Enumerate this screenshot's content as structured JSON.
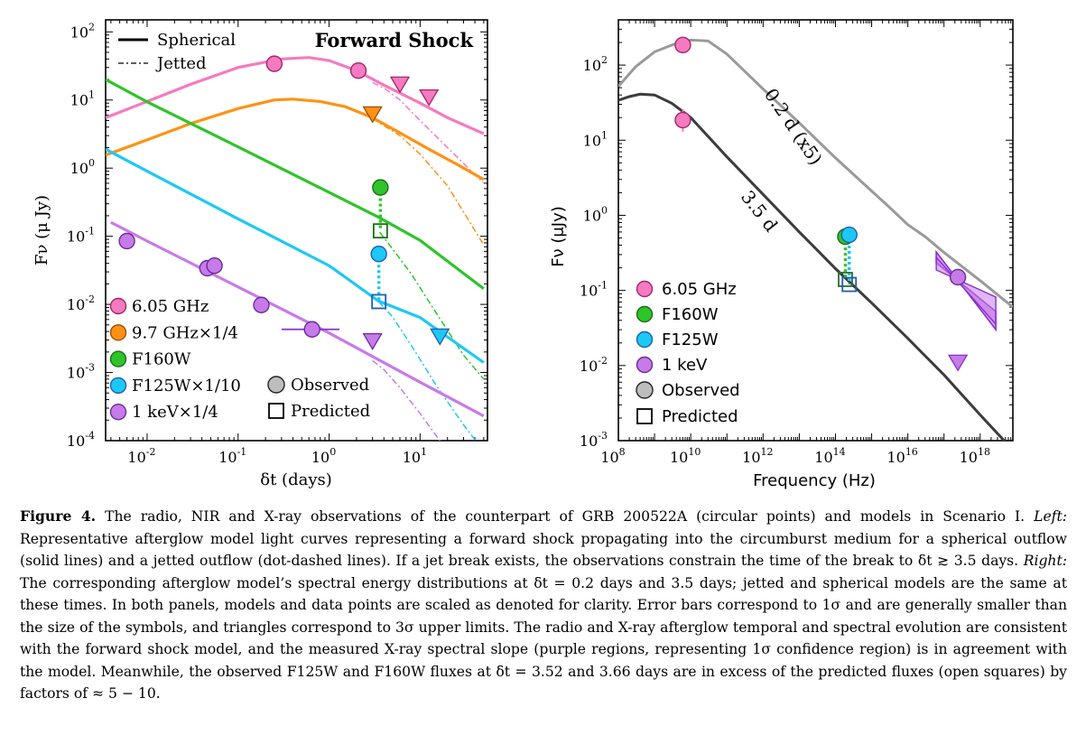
{
  "figure": {
    "caption_label": "Figure 4.",
    "caption_text_1": " The radio, NIR and X-ray observations of the counterpart of GRB 200522A (circular points) and models in Scenario I. ",
    "caption_left": "Left:",
    "caption_text_2": " Representative afterglow model light curves representing a forward shock propagating into the circumburst medium for a spherical outflow (solid lines) and a jetted outflow (dot-dashed lines). If a jet break exists, the observations constrain the time of the break to δt ≳ 3.5 days. ",
    "caption_right": "Right:",
    "caption_text_3": " The corresponding afterglow model’s spectral energy distributions at δt = 0.2 days and 3.5 days; jetted and spherical models are the same at these times. In both panels, models and data points are scaled as denoted for clarity. Error bars correspond to 1σ and are generally smaller than the size of the symbols, and triangles correspond to 3σ upper limits. The radio and X-ray afterglow temporal and spectral evolution are consistent with the forward shock model, and the measured X-ray spectral slope (purple regions, representing 1σ confidence region) is in agreement with the model. Meanwhile, the observed F125W and F160W fluxes at δt = 3.52 and 3.66 days are in excess of the predicted fluxes (open squares) by factors of ≈ 5 − 10."
  },
  "colors": {
    "radio605": "#f57ac0",
    "radio97": "#ff9214",
    "f160w": "#2fc42a",
    "f125w": "#1ec8f5",
    "xray": "#c77be8",
    "xray_edge": "#8a2fd0",
    "sed02": "#9a9a9a",
    "sed35": "#3c3c3c"
  },
  "chart_data": [
    {
      "type": "line",
      "title": "Forward Shock",
      "xlabel": "δt (days)",
      "ylabel": "Fν (μ Jy)",
      "xscale": "log",
      "yscale": "log",
      "xlim": [
        0.0035,
        55
      ],
      "ylim": [
        0.0001,
        150
      ],
      "xticks": [
        {
          "v": 0.01,
          "m": "10",
          "e": "-2"
        },
        {
          "v": 0.1,
          "m": "10",
          "e": "-1"
        },
        {
          "v": 1,
          "m": "10",
          "e": "0"
        },
        {
          "v": 10,
          "m": "10",
          "e": "1"
        }
      ],
      "yticks": [
        {
          "v": 100,
          "m": "10",
          "e": "2"
        },
        {
          "v": 10,
          "m": "10",
          "e": "1"
        },
        {
          "v": 1,
          "m": "10",
          "e": "0"
        },
        {
          "v": 0.1,
          "m": "10",
          "e": "-1"
        },
        {
          "v": 0.01,
          "m": "10",
          "e": "-2"
        },
        {
          "v": 0.001,
          "m": "10",
          "e": "-3"
        },
        {
          "v": 0.0001,
          "m": "10",
          "e": "-4"
        }
      ],
      "legend_lines": [
        {
          "label": "Spherical",
          "style": "solid"
        },
        {
          "label": "Jetted",
          "style": "dashdot"
        }
      ],
      "legend_series": [
        {
          "label": "6.05 GHz",
          "color": "radio605"
        },
        {
          "label": "9.7 GHz×1/4",
          "color": "radio97"
        },
        {
          "label": "F160W",
          "color": "f160w"
        },
        {
          "label": "F125W×1/10",
          "color": "f125w"
        },
        {
          "label": "1 keV×1/4",
          "color": "xray"
        }
      ],
      "legend_markers": [
        {
          "label": "Observed",
          "shape": "circle"
        },
        {
          "label": "Predicted",
          "shape": "square"
        }
      ],
      "series": [
        {
          "name": "6.05 GHz",
          "color": "radio605",
          "spherical": [
            [
              0.0035,
              5.5
            ],
            [
              0.01,
              9.5
            ],
            [
              0.03,
              17
            ],
            [
              0.1,
              30
            ],
            [
              0.3,
              40
            ],
            [
              0.6,
              42
            ],
            [
              1,
              38
            ],
            [
              2,
              27
            ],
            [
              4,
              16.5
            ],
            [
              10,
              9
            ],
            [
              20,
              5.5
            ],
            [
              50,
              3.2
            ]
          ],
          "jetted": [
            [
              3,
              18
            ],
            [
              4,
              15
            ],
            [
              6,
              10
            ],
            [
              10,
              5
            ],
            [
              20,
              2
            ],
            [
              50,
              0.6
            ]
          ],
          "observed": [
            [
              0.25,
              34
            ],
            [
              2.1,
              27
            ]
          ],
          "upper_limits": [
            [
              6.0,
              17
            ],
            [
              12.5,
              11
            ]
          ]
        },
        {
          "name": "9.7 GHz×1/4",
          "color": "radio97",
          "spherical": [
            [
              0.0035,
              1.55
            ],
            [
              0.01,
              2.6
            ],
            [
              0.03,
              4.5
            ],
            [
              0.1,
              7.5
            ],
            [
              0.25,
              10
            ],
            [
              0.4,
              10.3
            ],
            [
              0.8,
              9.5
            ],
            [
              1.5,
              8
            ],
            [
              3,
              5.5
            ],
            [
              6,
              3.3
            ],
            [
              12,
              1.95
            ],
            [
              25,
              1.15
            ],
            [
              50,
              0.68
            ]
          ],
          "jetted": [
            [
              3,
              5.3
            ],
            [
              4,
              4.2
            ],
            [
              6,
              3
            ],
            [
              10,
              1.6
            ],
            [
              20,
              0.55
            ],
            [
              50,
              0.075
            ]
          ],
          "observed": [],
          "upper_limits": [
            [
              3.0,
              6.2
            ]
          ]
        },
        {
          "name": "F160W",
          "color": "f160w",
          "spherical": [
            [
              0.0035,
              20
            ],
            [
              0.01,
              9.4
            ],
            [
              0.1,
              2.05
            ],
            [
              1,
              0.44
            ],
            [
              3.5,
              0.19
            ],
            [
              10,
              0.087
            ],
            [
              50,
              0.017
            ]
          ],
          "jetted": [
            [
              3.6,
              0.115
            ],
            [
              5,
              0.065
            ],
            [
              8,
              0.028
            ],
            [
              15,
              0.0075
            ],
            [
              30,
              0.0018
            ],
            [
              50,
              0.0008
            ]
          ],
          "observed": [
            [
              3.66,
              0.52
            ]
          ],
          "predicted": [
            [
              3.66,
              0.12
            ]
          ]
        },
        {
          "name": "F125W×1/10",
          "color": "f125w",
          "spherical": [
            [
              0.0035,
              1.9
            ],
            [
              0.01,
              0.9
            ],
            [
              0.1,
              0.18
            ],
            [
              1,
              0.037
            ],
            [
              3.5,
              0.0112
            ],
            [
              10,
              0.0064
            ],
            [
              50,
              0.0014
            ]
          ],
          "jetted": [
            [
              3.5,
              0.011
            ],
            [
              5,
              0.0065
            ],
            [
              8,
              0.0025
            ],
            [
              15,
              0.00065
            ],
            [
              30,
              0.00017
            ],
            [
              50,
              7e-05
            ]
          ],
          "observed": [
            [
              3.52,
              0.055
            ]
          ],
          "predicted": [
            [
              3.52,
              0.011
            ]
          ],
          "upper_limits": [
            [
              16.5,
              0.0034
            ]
          ]
        },
        {
          "name": "1 keV×1/4",
          "color": "xray",
          "spherical": [
            [
              0.004,
              0.16
            ],
            [
              0.01,
              0.085
            ],
            [
              0.1,
              0.018
            ],
            [
              1,
              0.0038
            ],
            [
              10,
              0.00072
            ],
            [
              50,
              0.00023
            ]
          ],
          "jetted": [
            [
              3,
              0.0015
            ],
            [
              4,
              0.0011
            ],
            [
              6,
              0.0006
            ],
            [
              10,
              0.00025
            ],
            [
              20,
              7e-05
            ]
          ],
          "observed": [
            [
              0.006,
              0.085
            ],
            [
              0.046,
              0.034
            ],
            [
              0.055,
              0.037
            ],
            [
              0.18,
              0.0098
            ],
            [
              0.65,
              0.0043
            ]
          ],
          "upper_limits": [
            [
              3.0,
              0.0029
            ]
          ]
        }
      ]
    },
    {
      "type": "line",
      "xlabel": "Frequency (Hz)",
      "ylabel": "Fν (μJy)",
      "xscale": "log",
      "yscale": "log",
      "xlim": [
        100000000,
        8e+18
      ],
      "ylim": [
        0.001,
        400
      ],
      "xticks": [
        {
          "v": 100000000.0,
          "m": "10",
          "e": "8"
        },
        {
          "v": 10000000000.0,
          "m": "10",
          "e": "10"
        },
        {
          "v": 1000000000000.0,
          "m": "10",
          "e": "12"
        },
        {
          "v": 100000000000000.0,
          "m": "10",
          "e": "14"
        },
        {
          "v": 1e+16,
          "m": "10",
          "e": "16"
        },
        {
          "v": 1e+18,
          "m": "10",
          "e": "18"
        }
      ],
      "yticks": [
        {
          "v": 100,
          "m": "10",
          "e": "2"
        },
        {
          "v": 10,
          "m": "10",
          "e": "1"
        },
        {
          "v": 1,
          "m": "10",
          "e": "0"
        },
        {
          "v": 0.1,
          "m": "10",
          "e": "-1"
        },
        {
          "v": 0.01,
          "m": "10",
          "e": "-2"
        },
        {
          "v": 0.001,
          "m": "10",
          "e": "-3"
        }
      ],
      "annotations": [
        {
          "text": "0.2 d (x5)"
        },
        {
          "text": "3.5 d"
        }
      ],
      "legend_series": [
        {
          "label": "6.05 GHz",
          "color": "radio605"
        },
        {
          "label": "F160W",
          "color": "f160w"
        },
        {
          "label": "F125W",
          "color": "f125w"
        },
        {
          "label": "1 keV",
          "color": "xray"
        }
      ],
      "legend_markers": [
        {
          "label": "Observed",
          "shape": "circle"
        },
        {
          "label": "Predicted",
          "shape": "square"
        }
      ],
      "series": [
        {
          "name": "0.2 d (x5)",
          "color": "sed02",
          "points": [
            [
              100000000.0,
              52
            ],
            [
              300000000.0,
              95
            ],
            [
              1000000000.0,
              150
            ],
            [
              4000000000.0,
              195
            ],
            [
              10000000000.0,
              215
            ],
            [
              30000000000.0,
              210
            ],
            [
              100000000000.0,
              140
            ],
            [
              1000000000000.0,
              48
            ],
            [
              10000000000000.0,
              17
            ],
            [
              100000000000000.0,
              5.8
            ],
            [
              1000000000000000.0,
              2.1
            ],
            [
              3000000000000000.0,
              1.3
            ],
            [
              1e+16,
              0.75
            ],
            [
              3e+16,
              0.52
            ],
            [
              1e+17,
              0.32
            ],
            [
              1e+18,
              0.135
            ],
            [
              8e+18,
              0.06
            ]
          ]
        },
        {
          "name": "3.5 d",
          "color": "sed35",
          "points": [
            [
              100000000.0,
              34
            ],
            [
              200000000.0,
              38
            ],
            [
              400000000.0,
              41
            ],
            [
              1000000000.0,
              40
            ],
            [
              3000000000.0,
              31
            ],
            [
              10000000000.0,
              20
            ],
            [
              100000000000.0,
              6
            ],
            [
              1000000000000.0,
              1.9
            ],
            [
              10000000000000.0,
              0.6
            ],
            [
              100000000000000.0,
              0.195
            ],
            [
              1000000000000000.0,
              0.068
            ],
            [
              1e+16,
              0.023
            ],
            [
              1e+17,
              0.0075
            ],
            [
              1e+18,
              0.0022
            ],
            [
              8e+18,
              0.00075
            ]
          ]
        }
      ],
      "observed": [
        {
          "series": "6.05 GHz",
          "color": "radio605",
          "points": [
            [
              6050000000.0,
              185
            ],
            [
              6050000000.0,
              18.5
            ]
          ]
        },
        {
          "series": "F160W",
          "color": "f160w",
          "points": [
            [
              188000000000000.0,
              0.52
            ]
          ]
        },
        {
          "series": "F125W",
          "color": "f125w",
          "points": [
            [
              240000000000000.0,
              0.55
            ]
          ]
        },
        {
          "series": "1 keV",
          "color": "xray",
          "points": [
            [
              2.42e+17,
              0.15
            ]
          ]
        }
      ],
      "predicted": [
        [
          188000000000000.0,
          0.14
        ],
        [
          240000000000000.0,
          0.12
        ]
      ],
      "upper_limits": [
        {
          "color": "xray",
          "x": 2.42e+17,
          "y": 0.011
        }
      ]
    }
  ]
}
